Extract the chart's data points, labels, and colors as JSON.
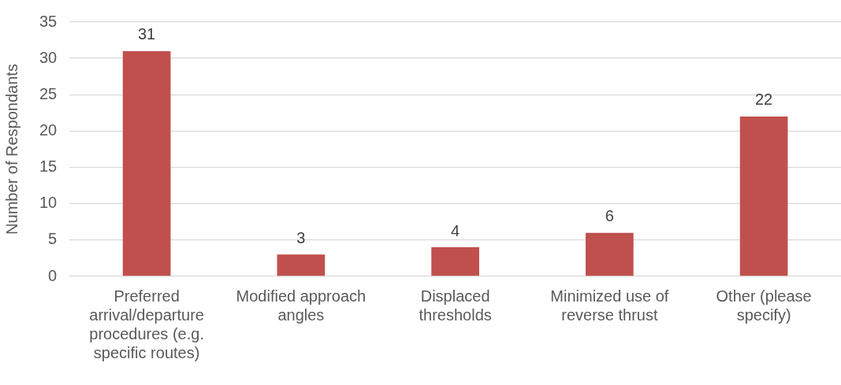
{
  "chart_data": {
    "type": "bar",
    "ylabel": "Number of Respondants",
    "categories": [
      "Preferred arrival/departure procedures (e.g. specific routes)",
      "Modified approach angles",
      "Displaced thresholds",
      "Minimized use of reverse thrust",
      "Other (please specify)"
    ],
    "values": [
      31,
      3,
      4,
      6,
      22
    ],
    "color": "#c0504d",
    "ylim": [
      0,
      35
    ],
    "yticks": [
      0,
      5,
      10,
      15,
      20,
      25,
      30,
      35
    ],
    "grid": "y",
    "legend": false,
    "data_labels": true
  }
}
